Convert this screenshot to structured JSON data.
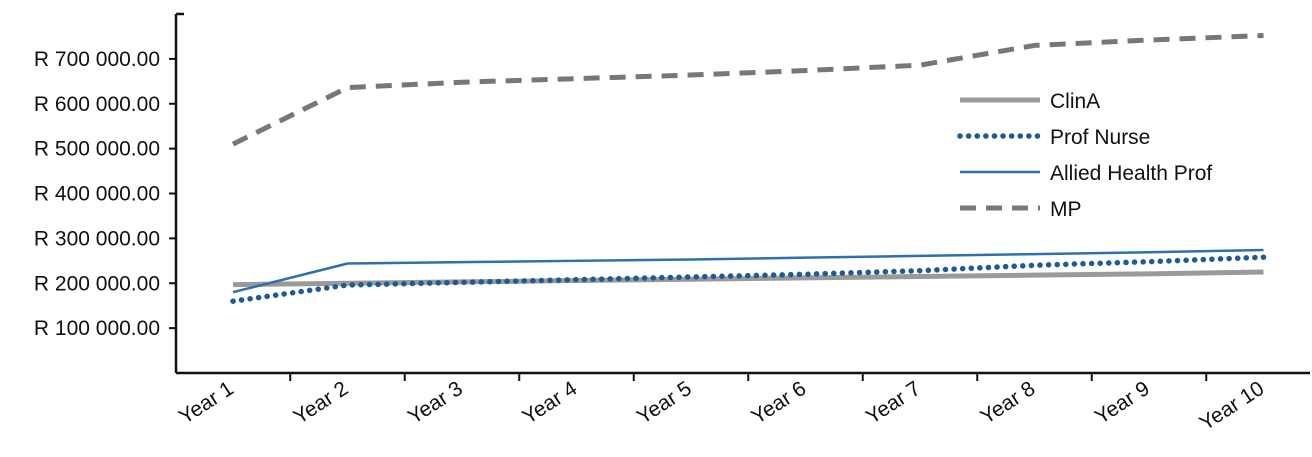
{
  "chart_data": {
    "type": "line",
    "categories": [
      "Year 1",
      "Year 2",
      "Year 3",
      "Year 4",
      "Year 5",
      "Year 6",
      "Year 7",
      "Year 8",
      "Year 9",
      "Year 10"
    ],
    "y_ticks": [
      {
        "value": 100000,
        "label": "R 100 000.00"
      },
      {
        "value": 200000,
        "label": "R 200 000.00"
      },
      {
        "value": 300000,
        "label": "R 300 000.00"
      },
      {
        "value": 400000,
        "label": "R 400 000.00"
      },
      {
        "value": 500000,
        "label": "R 500 000.00"
      },
      {
        "value": 600000,
        "label": "R 600 000.00"
      },
      {
        "value": 700000,
        "label": "R 700 000.00"
      }
    ],
    "ylim": [
      0,
      800000
    ],
    "grid": false,
    "legend_position": "right",
    "series": [
      {
        "name": "ClinA",
        "color": "#9a9a9a",
        "style": "solid-thick",
        "values": [
          197000,
          200000,
          203000,
          206000,
          209000,
          212000,
          215000,
          218000,
          221000,
          225000
        ]
      },
      {
        "name": "Prof Nurse",
        "color": "#1f5a96",
        "style": "dotted",
        "values": [
          160000,
          196000,
          202000,
          208000,
          214000,
          220000,
          228000,
          240000,
          248000,
          258000
        ]
      },
      {
        "name": "Allied Health Prof",
        "color": "#2e6fb0",
        "style": "solid-thin",
        "values": [
          180000,
          244000,
          247000,
          250000,
          253000,
          257000,
          261000,
          265000,
          269000,
          274000
        ]
      },
      {
        "name": "MP",
        "color": "#777777",
        "style": "dashed",
        "values": [
          510000,
          636000,
          648000,
          656000,
          664000,
          674000,
          686000,
          730000,
          742000,
          752000
        ]
      }
    ]
  }
}
